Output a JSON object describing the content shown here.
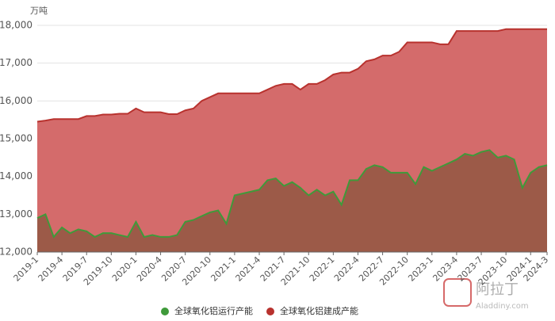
{
  "chart_data": {
    "type": "area",
    "y_label": "万吨",
    "categories": [
      "2019-1",
      null,
      null,
      "2019-4",
      null,
      null,
      "2019-7",
      null,
      null,
      "2019-10",
      null,
      null,
      "2020-1",
      null,
      null,
      "2020-4",
      null,
      null,
      "2020-7",
      null,
      null,
      "2020-10",
      null,
      null,
      "2021-1",
      null,
      null,
      "2021-4",
      null,
      null,
      "2021-7",
      null,
      null,
      "2021-10",
      null,
      null,
      "2022-1",
      null,
      null,
      "2022-4",
      null,
      null,
      "2022-7",
      null,
      null,
      "2022-10",
      null,
      null,
      "2023-1",
      null,
      null,
      "2023-4",
      null,
      null,
      "2023-7",
      null,
      null,
      "2023-10",
      null,
      null,
      "2024-1",
      null,
      "2024-3"
    ],
    "series": [
      {
        "name": "全球氧化铝建成产能",
        "color": "#b8322e",
        "area_color": "#d46b6b",
        "values": [
          15450,
          15480,
          15520,
          15520,
          15520,
          15520,
          15600,
          15600,
          15640,
          15640,
          15660,
          15660,
          15800,
          15700,
          15700,
          15700,
          15650,
          15650,
          15750,
          15800,
          16000,
          16100,
          16200,
          16200,
          16200,
          16200,
          16200,
          16200,
          16300,
          16400,
          16450,
          16450,
          16300,
          16450,
          16450,
          16550,
          16700,
          16750,
          16750,
          16850,
          17050,
          17100,
          17200,
          17200,
          17300,
          17550,
          17550,
          17550,
          17550,
          17500,
          17500,
          17850,
          17850,
          17850,
          17850,
          17850,
          17850,
          17900,
          17900,
          17900,
          17900,
          17900,
          17900
        ]
      },
      {
        "name": "全球氧化铝运行产能",
        "color": "#3f9a3a",
        "area_color": "#9c5a48",
        "values": [
          12900,
          13000,
          12400,
          12650,
          12500,
          12600,
          12550,
          12400,
          12500,
          12500,
          12450,
          12400,
          12800,
          12400,
          12450,
          12400,
          12400,
          12450,
          12800,
          12850,
          12950,
          13050,
          13100,
          12750,
          13500,
          13550,
          13600,
          13650,
          13900,
          13950,
          13750,
          13850,
          13700,
          13500,
          13650,
          13500,
          13600,
          13250,
          13900,
          13900,
          14200,
          14300,
          14250,
          14100,
          14100,
          14100,
          13800,
          14250,
          14150,
          14250,
          14350,
          14450,
          14600,
          14550,
          14650,
          14700,
          14500,
          14550,
          14450,
          13700,
          14100,
          14250,
          14300
        ]
      }
    ],
    "legend_order": [
      1,
      0
    ],
    "ylim": [
      12000,
      18000
    ],
    "yticks": [
      {
        "value": 12000,
        "label": "12,000"
      },
      {
        "value": 13000,
        "label": "13,000"
      },
      {
        "value": 14000,
        "label": "14,000"
      },
      {
        "value": 15000,
        "label": "15,000"
      },
      {
        "value": 16000,
        "label": "16,000"
      },
      {
        "value": 17000,
        "label": "17,000"
      },
      {
        "value": 18000,
        "label": "18,000"
      }
    ],
    "grid": true,
    "watermark": {
      "name": "阿拉丁",
      "site": "Aladdiny.com"
    }
  }
}
